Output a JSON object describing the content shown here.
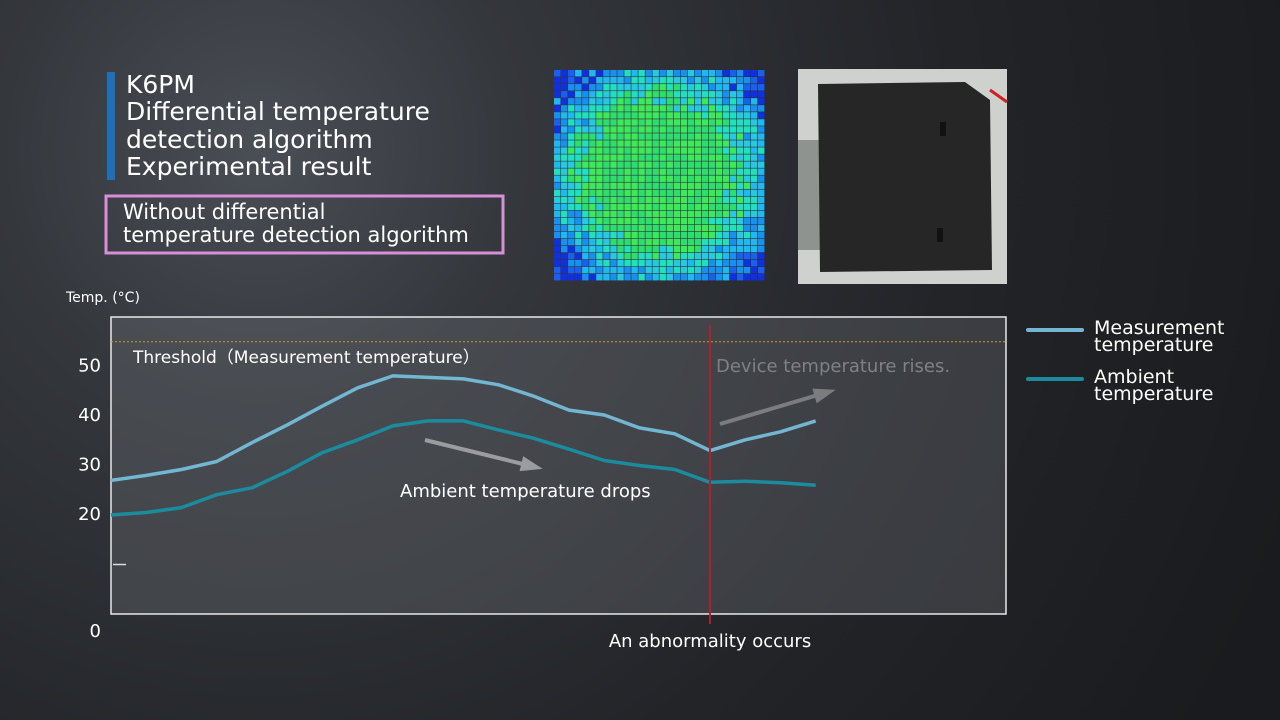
{
  "header": {
    "lines": [
      "K6PM",
      "Differential temperature",
      "detection algorithm",
      "Experimental result"
    ]
  },
  "mode_box": {
    "lines": [
      "Without differential",
      "temperature detection algorithm"
    ]
  },
  "chart_data": {
    "type": "line",
    "y_label": "Temp. (°C)",
    "x": [
      0,
      1,
      2,
      3,
      4,
      5,
      6,
      7,
      8,
      9,
      10,
      11,
      12,
      13,
      14,
      15,
      16,
      17,
      18,
      19,
      20
    ],
    "xlim": [
      0,
      25.4
    ],
    "ylim": [
      0,
      60
    ],
    "yticks": [
      0,
      20,
      30,
      40,
      50
    ],
    "yminor_ticks": [
      10
    ],
    "series": [
      {
        "name": "Measurement temperature",
        "color": "#72b6d2",
        "values": [
          27,
          28,
          29.2,
          30.8,
          34.6,
          38.2,
          42,
          45.7,
          48.1,
          47.8,
          47.5,
          46.3,
          44,
          41.2,
          40.2,
          37.6,
          36.4,
          33,
          35.2,
          36.8,
          39
        ]
      },
      {
        "name": "Ambient temperature",
        "color": "#1b8c9e",
        "values": [
          20,
          20.5,
          21.5,
          24.1,
          25.5,
          28.8,
          32.6,
          35.2,
          38,
          39,
          39,
          37.2,
          35.5,
          33.3,
          31,
          30,
          29.2,
          26.6,
          26.8,
          26.5,
          26
        ]
      }
    ],
    "threshold": {
      "value": 55,
      "label": "Threshold（Measurement temperature）",
      "color": "#c8a020"
    },
    "abnormality": {
      "x": 17,
      "label": "An abnormality occurs",
      "color": "#b0202a"
    },
    "annotations": [
      "Ambient temperature drops",
      "Device temperature rises."
    ]
  }
}
